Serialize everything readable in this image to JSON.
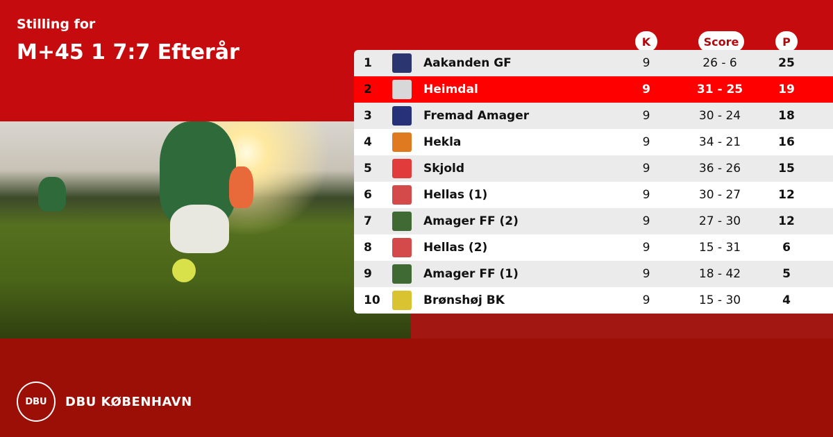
{
  "header": {
    "subtitle": "Stilling for",
    "title": "M+45 1 7:7 Efterår"
  },
  "columns": {
    "k": "K",
    "score": "Score",
    "p": "P"
  },
  "colors": {
    "primary_red": "#c60b0e",
    "highlight": "#ff0000",
    "footer": "#9c0f06"
  },
  "rows": [
    {
      "rank": "1",
      "team": "Aakanden GF",
      "k": "9",
      "score": "26 - 6",
      "p": "25",
      "logo": "#2b3570"
    },
    {
      "rank": "2",
      "team": "Heimdal",
      "k": "9",
      "score": "31 - 25",
      "p": "19",
      "logo": "#d8d8d8",
      "highlight": true
    },
    {
      "rank": "3",
      "team": "Fremad Amager",
      "k": "9",
      "score": "30 - 24",
      "p": "18",
      "logo": "#27317a"
    },
    {
      "rank": "4",
      "team": "Hekla",
      "k": "9",
      "score": "34 - 21",
      "p": "16",
      "logo": "#e07a20"
    },
    {
      "rank": "5",
      "team": "Skjold",
      "k": "9",
      "score": "36 - 26",
      "p": "15",
      "logo": "#e23b3b"
    },
    {
      "rank": "6",
      "team": "Hellas (1)",
      "k": "9",
      "score": "30 - 27",
      "p": "12",
      "logo": "#d44a4a"
    },
    {
      "rank": "7",
      "team": "Amager FF (2)",
      "k": "9",
      "score": "27 - 30",
      "p": "12",
      "logo": "#3f6a34"
    },
    {
      "rank": "8",
      "team": "Hellas (2)",
      "k": "9",
      "score": "15 - 31",
      "p": "6",
      "logo": "#d44a4a"
    },
    {
      "rank": "9",
      "team": "Amager FF (1)",
      "k": "9",
      "score": "18 - 42",
      "p": "5",
      "logo": "#3f6a34"
    },
    {
      "rank": "10",
      "team": "Brønshøj BK",
      "k": "9",
      "score": "15 - 30",
      "p": "4",
      "logo": "#d9c330"
    }
  ],
  "footer": {
    "brand": "DBU KØBENHAVN",
    "seal": "DBU"
  }
}
